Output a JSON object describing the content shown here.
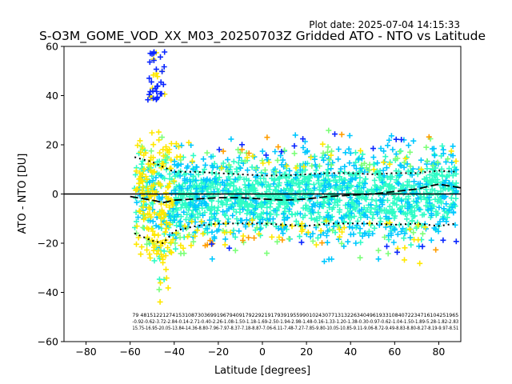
{
  "plot_date": "Plot date: 2025-07-04 14:15:33",
  "chart_data": {
    "type": "scatter",
    "title": "S-O3M_GOME_VOD_XX_M03_20250703Z Gridded ATO - NTO vs Latitude",
    "xlabel": "Latitude [degrees]",
    "ylabel": "ATO - NTO [DU]",
    "xlim": [
      -90,
      90
    ],
    "ylim": [
      -60,
      60
    ],
    "xticks": [
      -80,
      -60,
      -40,
      -20,
      0,
      20,
      40,
      60,
      80
    ],
    "yticks": [
      -60,
      -40,
      -20,
      0,
      20,
      40,
      60
    ],
    "xtick_labels": [
      "−80",
      "−60",
      "−40",
      "−20",
      "0",
      "20",
      "40",
      "60",
      "80"
    ],
    "ytick_labels": [
      "−60",
      "−40",
      "−20",
      "0",
      "20",
      "40",
      "60"
    ],
    "zero_line": 0,
    "grid": false,
    "marker": "+",
    "colors": [
      "#2ffcc6",
      "#00c8ff",
      "#7cff79",
      "#ffe800",
      "#0a26ff",
      "#ff9d00"
    ],
    "envelope": {
      "x": [
        -58,
        -50,
        -45,
        -40,
        -30,
        -20,
        -10,
        0,
        10,
        20,
        30,
        40,
        50,
        60,
        70,
        80,
        88
      ],
      "upper": [
        22,
        26,
        34,
        24,
        23,
        22,
        21,
        19,
        20,
        22,
        23,
        24,
        22,
        24,
        23,
        25,
        24
      ],
      "lower": [
        -22,
        -30,
        -50,
        -30,
        -22,
        -24,
        -22,
        -21,
        -22,
        -22,
        -24,
        -25,
        -24,
        -25,
        -26,
        -23,
        -22
      ],
      "density": [
        1.0,
        1.6,
        1.8,
        1.4,
        1.2,
        1.0,
        0.95,
        0.95,
        1.0,
        1.05,
        1.1,
        1.1,
        1.05,
        1.05,
        1.1,
        1.0,
        0.9
      ]
    },
    "mean_line": {
      "x": [
        -60,
        -50,
        -45,
        -40,
        -30,
        -20,
        -10,
        0,
        10,
        20,
        30,
        40,
        50,
        60,
        70,
        80,
        90
      ],
      "y": [
        -1,
        -2.5,
        -3.5,
        -2.5,
        -2,
        -1.5,
        -1.5,
        -2,
        -2.5,
        -2,
        -1,
        -0.5,
        0,
        1,
        2,
        4,
        2.5
      ]
    },
    "std_upper": {
      "x": [
        -58,
        -50,
        -45,
        -40,
        -30,
        -20,
        -10,
        0,
        10,
        20,
        30,
        40,
        50,
        60,
        70,
        80,
        88
      ],
      "y": [
        15,
        13,
        11,
        9,
        9,
        8.5,
        8,
        7.5,
        7.5,
        8,
        8.5,
        8.5,
        8,
        8.5,
        8.5,
        9.5,
        9
      ]
    },
    "std_lower": {
      "x": [
        -58,
        -50,
        -45,
        -40,
        -30,
        -20,
        -10,
        0,
        10,
        20,
        30,
        40,
        50,
        60,
        70,
        80,
        88
      ],
      "y": [
        -16,
        -19,
        -20,
        -15,
        -13,
        -12,
        -12,
        -12,
        -12.5,
        -13,
        -12,
        -12,
        -12,
        -12.5,
        -12,
        -13,
        -12
      ]
    },
    "bin_stats_rows": [
      " 79 4815122127415310873036991967940917922921917939195599010243077131322634049619331084072234716104251965",
      "-0.92-0.62-3.72-2.84-0.14-2.71-0.40-2.26-1.08-1.50-1.18-1.69-2.50-1.94-2.98-1.48-0.16-1.33-1.20-1.38-0.30-0.97-0.62-1.04-1.50-1.89-5.28-1.82-2.83",
      "15.75-16.95-20.05-13.84-14.36-8.80-7.96-7.97-8.37-7.18-8.87-7.06-6.11-7.48-7.27-7.85-9.80-10.05-10.85-9.11-9.06-8.72-9.49-8.83-8.80-8.27-8.19-9.97-8.51"
    ]
  }
}
